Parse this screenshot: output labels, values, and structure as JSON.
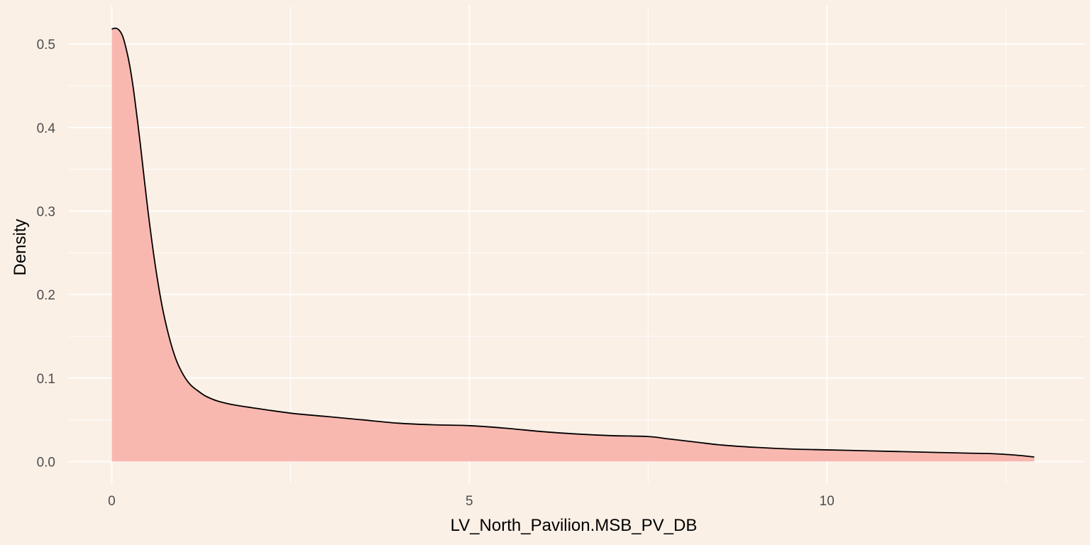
{
  "chart_data": {
    "type": "area",
    "title": "",
    "xlabel": "LV_North_Pavilion.MSB_PV_DB",
    "ylabel": "Density",
    "xlim": [
      -0.6,
      13.6
    ],
    "ylim": [
      -0.026,
      0.546
    ],
    "x_ticks": [
      0,
      5,
      10
    ],
    "x_tick_labels": [
      "0",
      "5",
      "10"
    ],
    "y_ticks": [
      0.0,
      0.1,
      0.2,
      0.3,
      0.4,
      0.5
    ],
    "y_tick_labels": [
      "0.0",
      "0.1",
      "0.2",
      "0.3",
      "0.4",
      "0.5"
    ],
    "grid": true,
    "colors": {
      "background": "#FAF0E6",
      "grid": "#FFFFFF",
      "fill": "#F8B8B0",
      "line": "#000000"
    },
    "x": [
      0.0,
      0.05,
      0.1,
      0.15,
      0.2,
      0.25,
      0.3,
      0.35,
      0.4,
      0.5,
      0.6,
      0.7,
      0.8,
      0.9,
      1.0,
      1.1,
      1.2,
      1.3,
      1.4,
      1.5,
      1.7,
      2.0,
      2.5,
      3.0,
      3.5,
      4.0,
      4.5,
      5.0,
      5.5,
      6.0,
      6.5,
      7.0,
      7.5,
      7.8,
      8.2,
      8.5,
      9.0,
      9.5,
      10.0,
      10.5,
      11.0,
      11.5,
      12.0,
      12.3,
      12.6,
      12.9
    ],
    "values": [
      0.518,
      0.519,
      0.517,
      0.51,
      0.495,
      0.475,
      0.448,
      0.415,
      0.38,
      0.305,
      0.24,
      0.188,
      0.15,
      0.122,
      0.104,
      0.092,
      0.085,
      0.079,
      0.075,
      0.072,
      0.068,
      0.064,
      0.058,
      0.054,
      0.05,
      0.046,
      0.044,
      0.043,
      0.04,
      0.036,
      0.033,
      0.031,
      0.03,
      0.027,
      0.023,
      0.02,
      0.017,
      0.015,
      0.014,
      0.013,
      0.012,
      0.011,
      0.01,
      0.0095,
      0.008,
      0.0055
    ]
  }
}
